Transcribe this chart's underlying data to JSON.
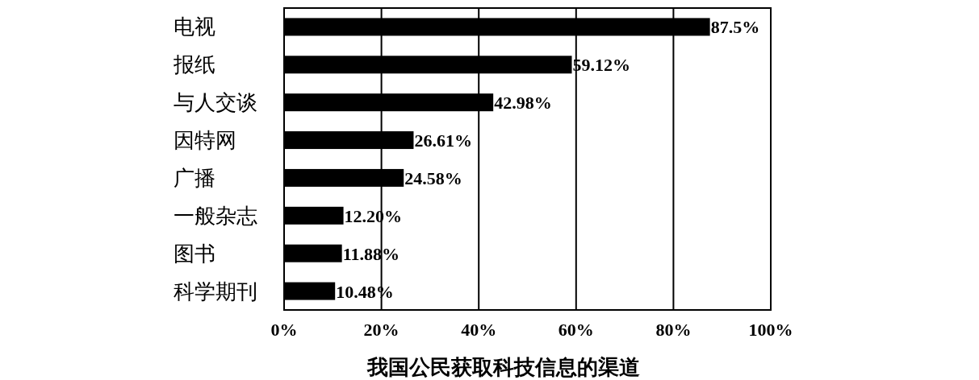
{
  "chart_data": {
    "type": "bar",
    "orientation": "horizontal",
    "xlabel": "我国公民获取科技信息的渠道",
    "categories": [
      "电视",
      "报纸",
      "与人交谈",
      "因特网",
      "广播",
      "一般杂志",
      "图书",
      "科学期刊"
    ],
    "values": [
      87.5,
      59.12,
      42.98,
      26.61,
      24.58,
      12.2,
      11.88,
      10.48
    ],
    "value_labels": [
      "87.5%",
      "59.12%",
      "42.98%",
      "26.61%",
      "24.58%",
      "12.20%",
      "11.88%",
      "10.48%"
    ],
    "color": "#000000",
    "xlim": [
      0,
      100
    ],
    "xticks": [
      {
        "value": 0,
        "label": "0%"
      },
      {
        "value": 20,
        "label": "20%"
      },
      {
        "value": 40,
        "label": "40%"
      },
      {
        "value": 60,
        "label": "60%"
      },
      {
        "value": 80,
        "label": "80%"
      },
      {
        "value": 100,
        "label": "100%"
      }
    ],
    "grid": "x"
  }
}
